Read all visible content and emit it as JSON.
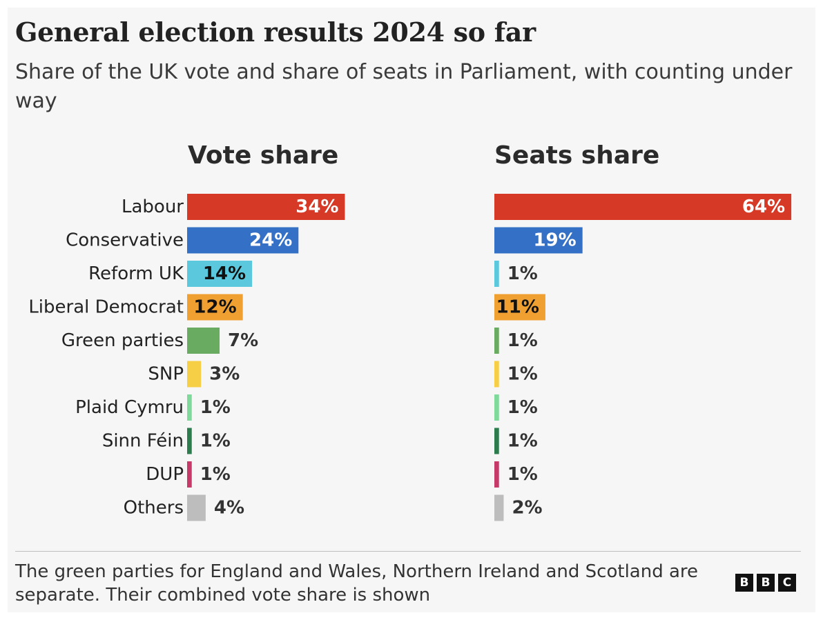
{
  "header": {
    "title": "General election results 2024 so far",
    "subtitle": "Share of the UK vote and share of seats in Parliament, with counting under way"
  },
  "footer": {
    "note": "The green parties for England and Wales, Northern Ireland and Scotland are separate. Their combined vote share is shown",
    "logo": [
      "B",
      "B",
      "C"
    ]
  },
  "chart_data": {
    "type": "bar",
    "orientation": "horizontal",
    "categories": [
      "Labour",
      "Conservative",
      "Reform UK",
      "Liberal Democrat",
      "Green parties",
      "SNP",
      "Plaid Cymru",
      "Sinn Féin",
      "DUP",
      "Others"
    ],
    "colors": [
      "#d63a26",
      "#3471c6",
      "#5cc8dd",
      "#f0a030",
      "#6aab62",
      "#f6cf47",
      "#7ed99b",
      "#2d7c4e",
      "#c53a68",
      "#bdbdbd"
    ],
    "label_inside_colors": [
      "#ffffff",
      "#ffffff",
      "#111111",
      "#111111",
      "#111111",
      "#111111",
      "#111111",
      "#111111",
      "#111111",
      "#111111"
    ],
    "unit": "%",
    "series": [
      {
        "name": "Vote share",
        "values": [
          34,
          24,
          14,
          12,
          7,
          3,
          1,
          1,
          1,
          4
        ]
      },
      {
        "name": "Seats share",
        "values": [
          64,
          19,
          1,
          11,
          1,
          1,
          1,
          1,
          1,
          2
        ]
      }
    ],
    "xlim": [
      0,
      64
    ],
    "grid": false,
    "legend": "none"
  }
}
